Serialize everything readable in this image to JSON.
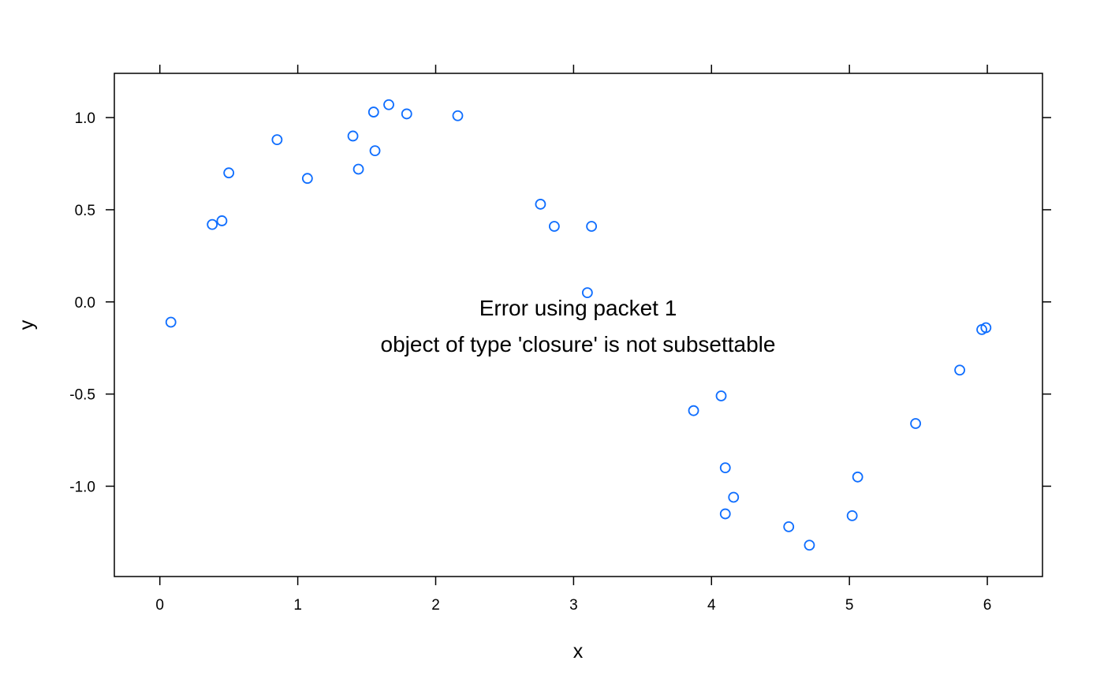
{
  "chart_data": {
    "type": "scatter",
    "title": "",
    "xlabel": "x",
    "ylabel": "y",
    "xlim": [
      -0.33,
      6.4
    ],
    "ylim": [
      -1.49,
      1.24
    ],
    "x_ticks": [
      0,
      1,
      2,
      3,
      4,
      5,
      6
    ],
    "x_tick_labels": [
      "0",
      "1",
      "2",
      "3",
      "4",
      "5",
      "6"
    ],
    "y_ticks": [
      -1.0,
      -0.5,
      0.0,
      0.5,
      1.0
    ],
    "y_tick_labels": [
      "-1.0",
      "-0.5",
      "0.0",
      "0.5",
      "1.0"
    ],
    "grid": false,
    "point_color": "#0F6EFF",
    "error_message": {
      "line1": "Error using packet 1",
      "line2": "object of type 'closure' is not subsettable"
    },
    "series": [
      {
        "points": [
          {
            "x": 0.08,
            "y": -0.11
          },
          {
            "x": 0.38,
            "y": 0.42
          },
          {
            "x": 0.45,
            "y": 0.44
          },
          {
            "x": 0.5,
            "y": 0.7
          },
          {
            "x": 0.85,
            "y": 0.88
          },
          {
            "x": 1.07,
            "y": 0.67
          },
          {
            "x": 1.4,
            "y": 0.9
          },
          {
            "x": 1.44,
            "y": 0.72
          },
          {
            "x": 1.55,
            "y": 1.03
          },
          {
            "x": 1.56,
            "y": 0.82
          },
          {
            "x": 1.66,
            "y": 1.07
          },
          {
            "x": 1.79,
            "y": 1.02
          },
          {
            "x": 2.16,
            "y": 1.01
          },
          {
            "x": 2.76,
            "y": 0.53
          },
          {
            "x": 2.86,
            "y": 0.41
          },
          {
            "x": 3.1,
            "y": 0.05
          },
          {
            "x": 3.13,
            "y": 0.41
          },
          {
            "x": 3.87,
            "y": -0.59
          },
          {
            "x": 4.07,
            "y": -0.51
          },
          {
            "x": 4.1,
            "y": -0.9
          },
          {
            "x": 4.1,
            "y": -1.15
          },
          {
            "x": 4.16,
            "y": -1.06
          },
          {
            "x": 4.56,
            "y": -1.22
          },
          {
            "x": 4.71,
            "y": -1.32
          },
          {
            "x": 5.02,
            "y": -1.16
          },
          {
            "x": 5.06,
            "y": -0.95
          },
          {
            "x": 5.48,
            "y": -0.66
          },
          {
            "x": 5.8,
            "y": -0.37
          },
          {
            "x": 5.96,
            "y": -0.15
          },
          {
            "x": 5.99,
            "y": -0.14
          }
        ]
      }
    ]
  }
}
